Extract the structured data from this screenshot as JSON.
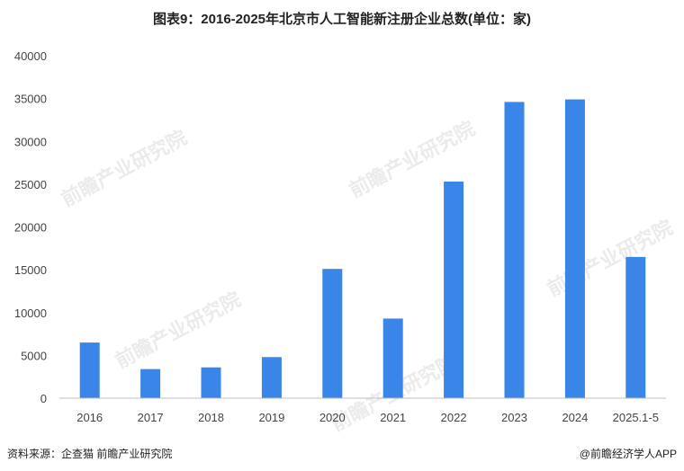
{
  "title": "图表9：2016-2025年北京市人工智能新注册企业总数(单位：家)",
  "source": "资料来源：企查猫 前瞻产业研究院",
  "brand": "@前瞻经济学人APP",
  "watermark": "前瞻产业研究院",
  "colors": {
    "bar": "#3a86e8",
    "axis": "#bfbfbf"
  },
  "chart_data": {
    "type": "bar",
    "title": "图表9：2016-2025年北京市人工智能新注册企业总数(单位：家)",
    "categories": [
      "2016",
      "2017",
      "2018",
      "2019",
      "2020",
      "2021",
      "2022",
      "2023",
      "2024",
      "2025.1-5"
    ],
    "values": [
      6500,
      3400,
      3600,
      4800,
      15100,
      9300,
      25300,
      34600,
      34900,
      16500
    ],
    "ylim": [
      0,
      40000
    ],
    "yticks": [
      "0",
      "5000",
      "10000",
      "15000",
      "20000",
      "25000",
      "30000",
      "35000",
      "40000"
    ],
    "xlabel": "",
    "ylabel": "",
    "grid": false
  }
}
